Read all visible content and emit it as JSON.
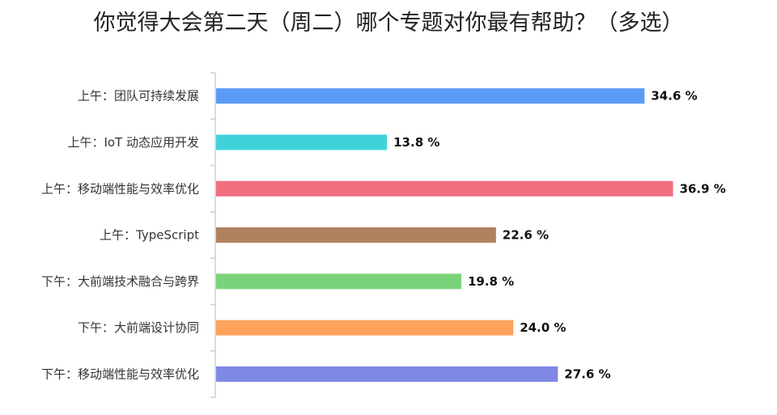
{
  "chart_data": {
    "type": "bar",
    "orientation": "horizontal",
    "title": "你觉得大会第二天（周二）哪个专题对你最有帮助？（多选）",
    "categories": [
      "上午：团队可持续发展",
      "上午：IoT 动态应用开发",
      "上午：移动端性能与效率优化",
      "上午：TypeScript",
      "下午：大前端技术融合与跨界",
      "下午：大前端设计协同",
      "下午：移动端性能与效率优化"
    ],
    "values": [
      34.6,
      13.8,
      36.9,
      22.6,
      19.8,
      24.0,
      27.6
    ],
    "value_labels": [
      "34.6 %",
      "13.8 %",
      "36.9 %",
      "22.6 %",
      "19.8 %",
      "24.0 %",
      "27.6 %"
    ],
    "colors": [
      "#5b9bf8",
      "#3fd3d9",
      "#f26d7d",
      "#b0815e",
      "#7ad27a",
      "#ffa35c",
      "#8088e6"
    ],
    "xlim": [
      0,
      40
    ],
    "grid": false,
    "legend": "none"
  }
}
